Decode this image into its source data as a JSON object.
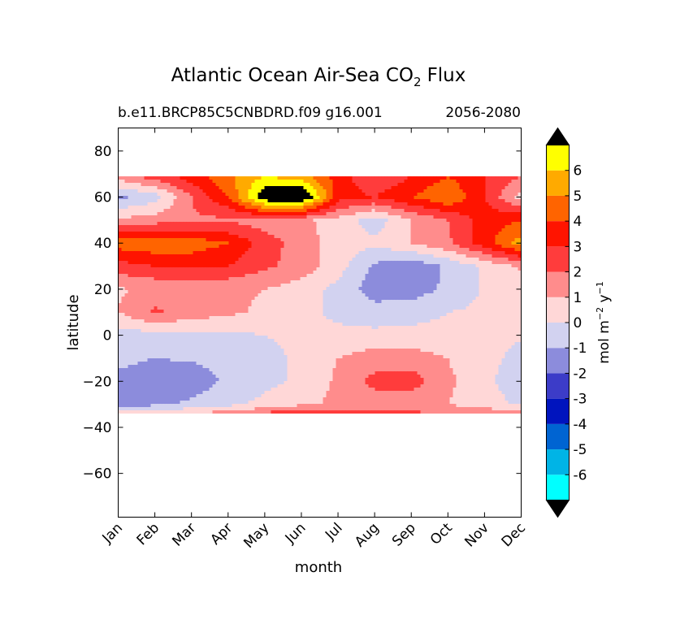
{
  "chart_data": {
    "type": "heatmap",
    "title": "Atlantic Ocean Air-Sea CO",
    "title_subscript": "2",
    "title_suffix": "Flux",
    "subtitle_left": "b.e11.BRCP85C5CNBDRD.f09 g16.001",
    "subtitle_right": "2056-2080",
    "xlabel": "month",
    "ylabel": "latitude",
    "x_categories": [
      "Jan",
      "Feb",
      "Mar",
      "Apr",
      "May",
      "Jun",
      "Jul",
      "Aug",
      "Sep",
      "Oct",
      "Nov",
      "Dec"
    ],
    "y_ticks": [
      80,
      60,
      40,
      20,
      0,
      -20,
      -40,
      -60
    ],
    "y_tick_labels": [
      "80",
      "60",
      "40",
      "20",
      "0",
      "−20",
      "−40",
      "−60"
    ],
    "ylim": [
      -79,
      90
    ],
    "data_lat_range": [
      -34,
      69
    ],
    "colorbar": {
      "label_base": "mol m",
      "label_exp1": "−2",
      "label_mid": " y",
      "label_exp2": "−1",
      "extend": "both",
      "levels": [
        -7,
        -6,
        -5,
        -4,
        -3,
        -2,
        -1,
        0,
        1,
        2,
        3,
        4,
        5,
        6,
        7
      ],
      "tick_labels": [
        "-6",
        "-5",
        "-4",
        "-3",
        "-2",
        "-1",
        "0",
        "1",
        "2",
        "3",
        "4",
        "5",
        "6"
      ],
      "colors": [
        "#00ffff",
        "#00b4e6",
        "#0064d2",
        "#0014be",
        "#3c3cc8",
        "#8c8cdc",
        "#d2d2f0",
        "#ffd7d7",
        "#ff8c8c",
        "#ff3c3c",
        "#ff1400",
        "#ff6400",
        "#ffaa00",
        "#ffff00"
      ],
      "under_color": "#000000",
      "over_color": "#000000"
    },
    "field_lats": [
      69,
      60,
      50,
      40,
      30,
      20,
      10,
      0,
      -10,
      -20,
      -30,
      -34
    ],
    "field_values": [
      [
        1.5,
        2.5,
        3.5,
        4.8,
        6.0,
        5.5,
        3.5,
        2.0,
        3.0,
        4.0,
        3.0,
        2.0
      ],
      [
        -1.2,
        -0.5,
        2.0,
        4.0,
        8.0,
        8.5,
        3.5,
        3.0,
        4.0,
        5.0,
        3.0,
        0.5
      ],
      [
        1.2,
        1.5,
        1.8,
        1.8,
        1.5,
        1.2,
        0.6,
        -0.5,
        1.0,
        2.0,
        3.5,
        4.0
      ],
      [
        4.5,
        4.8,
        4.6,
        4.0,
        2.5,
        1.5,
        0.5,
        0.2,
        1.0,
        1.8,
        3.5,
        5.5
      ],
      [
        2.6,
        3.0,
        3.2,
        3.0,
        2.2,
        1.6,
        0.4,
        -1.2,
        -1.8,
        -0.8,
        0.2,
        1.2
      ],
      [
        0.9,
        1.2,
        1.3,
        1.2,
        1.0,
        0.5,
        -0.3,
        -1.5,
        -1.5,
        -0.8,
        0.1,
        0.2
      ],
      [
        1.0,
        2.2,
        1.6,
        1.2,
        0.8,
        0.4,
        -0.3,
        -0.6,
        -0.4,
        0.0,
        0.2,
        0.3
      ],
      [
        -0.5,
        -0.4,
        -0.3,
        -0.2,
        0.0,
        0.2,
        0.3,
        0.3,
        0.3,
        0.3,
        0.2,
        0.1
      ],
      [
        -0.8,
        -1.0,
        -0.9,
        -0.6,
        -0.3,
        0.2,
        1.0,
        1.5,
        1.5,
        1.0,
        0.3,
        -0.3
      ],
      [
        -1.2,
        -1.5,
        -1.6,
        -0.8,
        -0.3,
        0.2,
        1.2,
        2.3,
        2.5,
        1.2,
        0.3,
        -0.7
      ],
      [
        -1.8,
        -1.2,
        -0.8,
        -0.3,
        0.3,
        0.8,
        1.2,
        1.5,
        1.3,
        1.0,
        0.5,
        -0.2
      ],
      [
        0.5,
        0.8,
        1.0,
        1.5,
        2.2,
        2.8,
        2.5,
        2.2,
        2.2,
        2.0,
        1.8,
        1.5
      ]
    ]
  }
}
